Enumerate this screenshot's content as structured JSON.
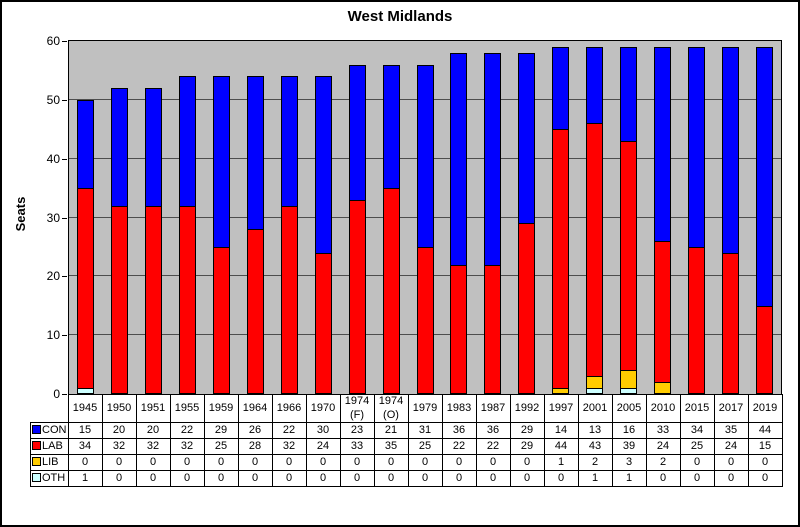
{
  "chart_data": {
    "type": "bar",
    "stacked": true,
    "title": "West Midlands",
    "xlabel": "",
    "ylabel": "Seats",
    "ylim": [
      0,
      60
    ],
    "ytick_interval": 10,
    "grid": true,
    "plot_background": "#C0C0C0",
    "legend_position": "table-left-column",
    "categories": [
      "1945",
      "1950",
      "1951",
      "1955",
      "1959",
      "1964",
      "1966",
      "1970",
      "1974 (F)",
      "1974 (O)",
      "1979",
      "1983",
      "1987",
      "1992",
      "1997",
      "2001",
      "2005",
      "2010",
      "2015",
      "2017",
      "2019"
    ],
    "series": [
      {
        "name": "CON",
        "color": "#0000FF",
        "values": [
          15,
          20,
          20,
          22,
          29,
          26,
          22,
          30,
          23,
          21,
          31,
          36,
          36,
          29,
          14,
          13,
          16,
          33,
          34,
          35,
          44
        ]
      },
      {
        "name": "LAB",
        "color": "#FF0000",
        "values": [
          34,
          32,
          32,
          32,
          25,
          28,
          32,
          24,
          33,
          35,
          25,
          22,
          22,
          29,
          44,
          43,
          39,
          24,
          25,
          24,
          15
        ]
      },
      {
        "name": "LIB",
        "color": "#FFCC00",
        "values": [
          0,
          0,
          0,
          0,
          0,
          0,
          0,
          0,
          0,
          0,
          0,
          0,
          0,
          0,
          1,
          2,
          3,
          2,
          0,
          0,
          0
        ]
      },
      {
        "name": "OTH",
        "color": "#CCFFFF",
        "values": [
          1,
          0,
          0,
          0,
          0,
          0,
          0,
          0,
          0,
          0,
          0,
          0,
          0,
          0,
          0,
          1,
          1,
          0,
          0,
          0,
          0
        ]
      }
    ],
    "stack_order_bottom_to_top": [
      "OTH",
      "LIB",
      "LAB",
      "CON"
    ]
  }
}
